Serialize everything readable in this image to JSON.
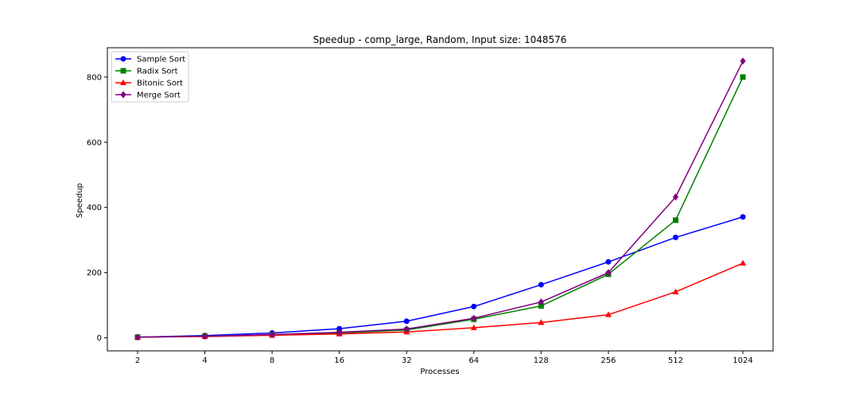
{
  "chart_data": {
    "type": "line",
    "title": "Speedup - comp_large, Random, Input size: 1048576",
    "xlabel": "Processes",
    "ylabel": "Speedup",
    "categories": [
      "2",
      "4",
      "8",
      "16",
      "32",
      "64",
      "128",
      "256",
      "512",
      "1024"
    ],
    "ylim": [
      -40,
      890
    ],
    "yticks": [
      0,
      200,
      400,
      600,
      800
    ],
    "grid": false,
    "legend_position": "top-left",
    "series": [
      {
        "name": "Sample Sort",
        "color": "#0000ff",
        "marker": "circle",
        "values": [
          2,
          7,
          15,
          28,
          51,
          96,
          163,
          233,
          308,
          371
        ]
      },
      {
        "name": "Radix Sort",
        "color": "#008000",
        "marker": "square",
        "values": [
          2,
          5,
          9,
          15,
          24,
          57,
          98,
          195,
          361,
          800
        ]
      },
      {
        "name": "Bitonic Sort",
        "color": "#ff0000",
        "marker": "triangle",
        "values": [
          2,
          4,
          8,
          12,
          18,
          31,
          47,
          71,
          141,
          229
        ]
      },
      {
        "name": "Merge Sort",
        "color": "#800080",
        "marker": "diamond",
        "values": [
          2,
          5,
          10,
          17,
          27,
          60,
          110,
          200,
          432,
          849
        ]
      }
    ]
  }
}
